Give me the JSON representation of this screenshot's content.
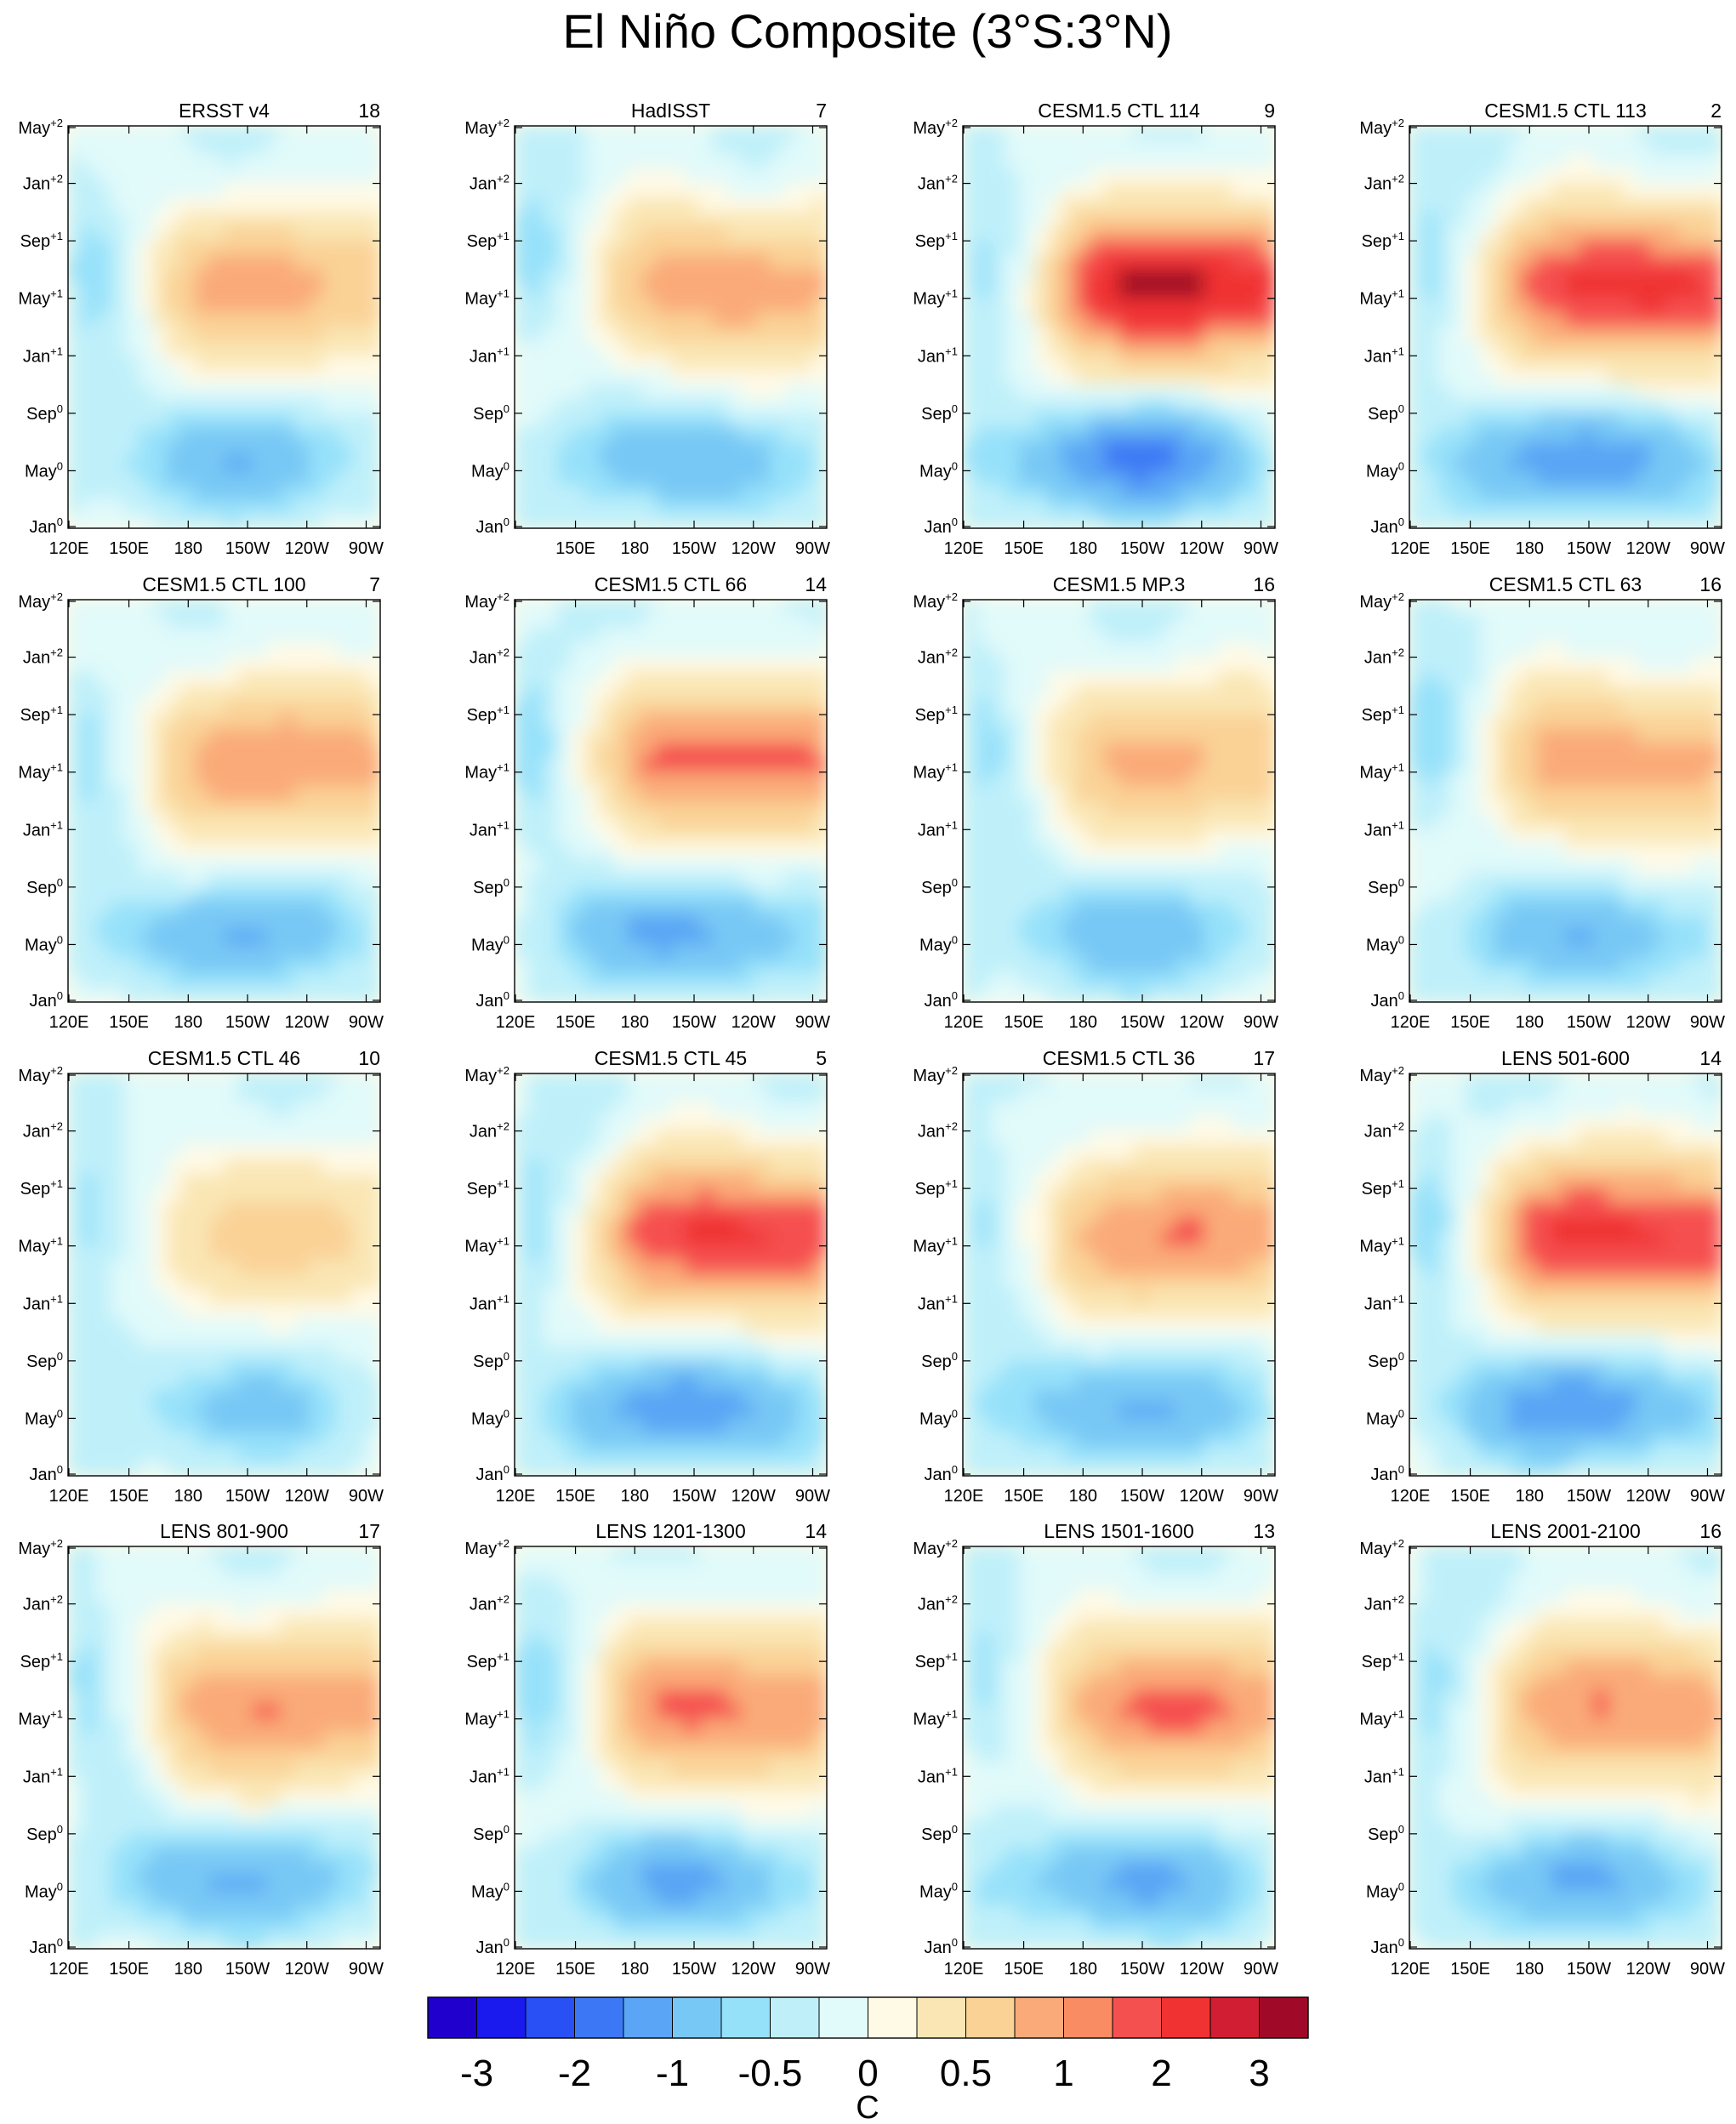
{
  "chart_data": {
    "type": "heatmap",
    "title": "El Niño Composite (3°S:3°N)",
    "colorbar": {
      "unit": "C",
      "tick_labels": [
        "-3",
        "-2",
        "-1",
        "-0.5",
        "0",
        "0.5",
        "1",
        "2",
        "3"
      ],
      "colors": [
        "#2000cc",
        "#1a1aee",
        "#2850f5",
        "#3c78f5",
        "#5aa5f5",
        "#78c8f5",
        "#96e1fa",
        "#bff0fa",
        "#e1fafa",
        "#fffae6",
        "#fae6b4",
        "#fad296",
        "#faaa78",
        "#fa8c64",
        "#f55050",
        "#f03232",
        "#d21e32",
        "#a00a28"
      ]
    },
    "y_ticks": [
      {
        "m": "May",
        "s": "+2"
      },
      {
        "m": "Jan",
        "s": "+2"
      },
      {
        "m": "Sep",
        "s": "+1"
      },
      {
        "m": "May",
        "s": "+1"
      },
      {
        "m": "Jan",
        "s": "+1"
      },
      {
        "m": "Sep",
        "s": "0"
      },
      {
        "m": "May",
        "s": "0"
      },
      {
        "m": "Jan",
        "s": "0"
      }
    ],
    "x_ticks": [
      "120E",
      "150E",
      "180",
      "150W",
      "120W",
      "90W"
    ],
    "panels": [
      {
        "name": "ERSST v4",
        "count": "18",
        "peak": 1.7,
        "x_ticks": [
          "120E",
          "150E",
          "180",
          "150W",
          "120W",
          "90W"
        ]
      },
      {
        "name": "HadISST",
        "count": "7",
        "peak": 1.8,
        "x_ticks": [
          "150E",
          "180",
          "150W",
          "120W",
          "90W"
        ]
      },
      {
        "name": "CESM1.5 CTL 114",
        "count": "9",
        "peak": 3.1,
        "x_ticks": [
          "120E",
          "150E",
          "180",
          "150W",
          "120W",
          "90W"
        ]
      },
      {
        "name": "CESM1.5 CTL 113",
        "count": "2",
        "peak": 2.7,
        "x_ticks": [
          "120E",
          "150E",
          "180",
          "150W",
          "120W",
          "90W"
        ]
      },
      {
        "name": "CESM1.5 CTL 100",
        "count": "7",
        "peak": 1.9,
        "x_ticks": [
          "120E",
          "150E",
          "180",
          "150W",
          "120W",
          "90W"
        ]
      },
      {
        "name": "CESM1.5 CTL 66",
        "count": "14",
        "peak": 2.2,
        "x_ticks": [
          "120E",
          "150E",
          "180",
          "150W",
          "120W",
          "90W"
        ]
      },
      {
        "name": "CESM1.5 MP.3",
        "count": "16",
        "peak": 1.6,
        "x_ticks": [
          "120E",
          "150E",
          "180",
          "150W",
          "120W",
          "90W"
        ]
      },
      {
        "name": "CESM1.5 CTL 63",
        "count": "16",
        "peak": 1.8,
        "x_ticks": [
          "120E",
          "150E",
          "180",
          "150W",
          "120W",
          "90W"
        ]
      },
      {
        "name": "CESM1.5 CTL 46",
        "count": "10",
        "peak": 1.2,
        "x_ticks": [
          "120E",
          "150E",
          "180",
          "150W",
          "120W",
          "90W"
        ]
      },
      {
        "name": "CESM1.5 CTL 45",
        "count": "5",
        "peak": 2.6,
        "x_ticks": [
          "120E",
          "150E",
          "180",
          "150W",
          "120W",
          "90W"
        ]
      },
      {
        "name": "CESM1.5 CTL 36",
        "count": "17",
        "peak": 2.0,
        "x_ticks": [
          "120E",
          "150E",
          "180",
          "150W",
          "120W",
          "90W"
        ]
      },
      {
        "name": "LENS 501-600",
        "count": "14",
        "peak": 2.7,
        "x_ticks": [
          "120E",
          "150E",
          "180",
          "150W",
          "120W",
          "90W"
        ]
      },
      {
        "name": "LENS 801-900",
        "count": "17",
        "peak": 2.0,
        "x_ticks": [
          "120E",
          "150E",
          "180",
          "150W",
          "120W",
          "90W"
        ]
      },
      {
        "name": "LENS 1201-1300",
        "count": "14",
        "peak": 2.1,
        "x_ticks": [
          "120E",
          "150E",
          "180",
          "150W",
          "120W",
          "90W"
        ]
      },
      {
        "name": "LENS 1501-1600",
        "count": "13",
        "peak": 2.1,
        "x_ticks": [
          "120E",
          "150E",
          "180",
          "150W",
          "120W",
          "90W"
        ]
      },
      {
        "name": "LENS 2001-2100",
        "count": "16",
        "peak": 2.0,
        "x_ticks": [
          "120E",
          "150E",
          "180",
          "150W",
          "120W",
          "90W"
        ]
      }
    ]
  }
}
